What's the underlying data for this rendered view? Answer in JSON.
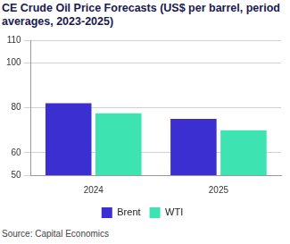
{
  "chart_data": {
    "type": "bar",
    "title": "CE Crude Oil Price Forecasts (US$ per barrel, period averages, 2023-2025)",
    "source": "Source: Capital Economics",
    "categories": [
      "2024",
      "2025"
    ],
    "series": [
      {
        "name": "Brent",
        "color": "#3b2fd1",
        "values": [
          82,
          75
        ]
      },
      {
        "name": "WTI",
        "color": "#3de3b0",
        "values": [
          77.5,
          70
        ]
      }
    ],
    "ylim": [
      50,
      110
    ],
    "yticks": [
      50,
      60,
      80,
      100,
      110
    ],
    "grid": true,
    "legend": "bottom"
  }
}
